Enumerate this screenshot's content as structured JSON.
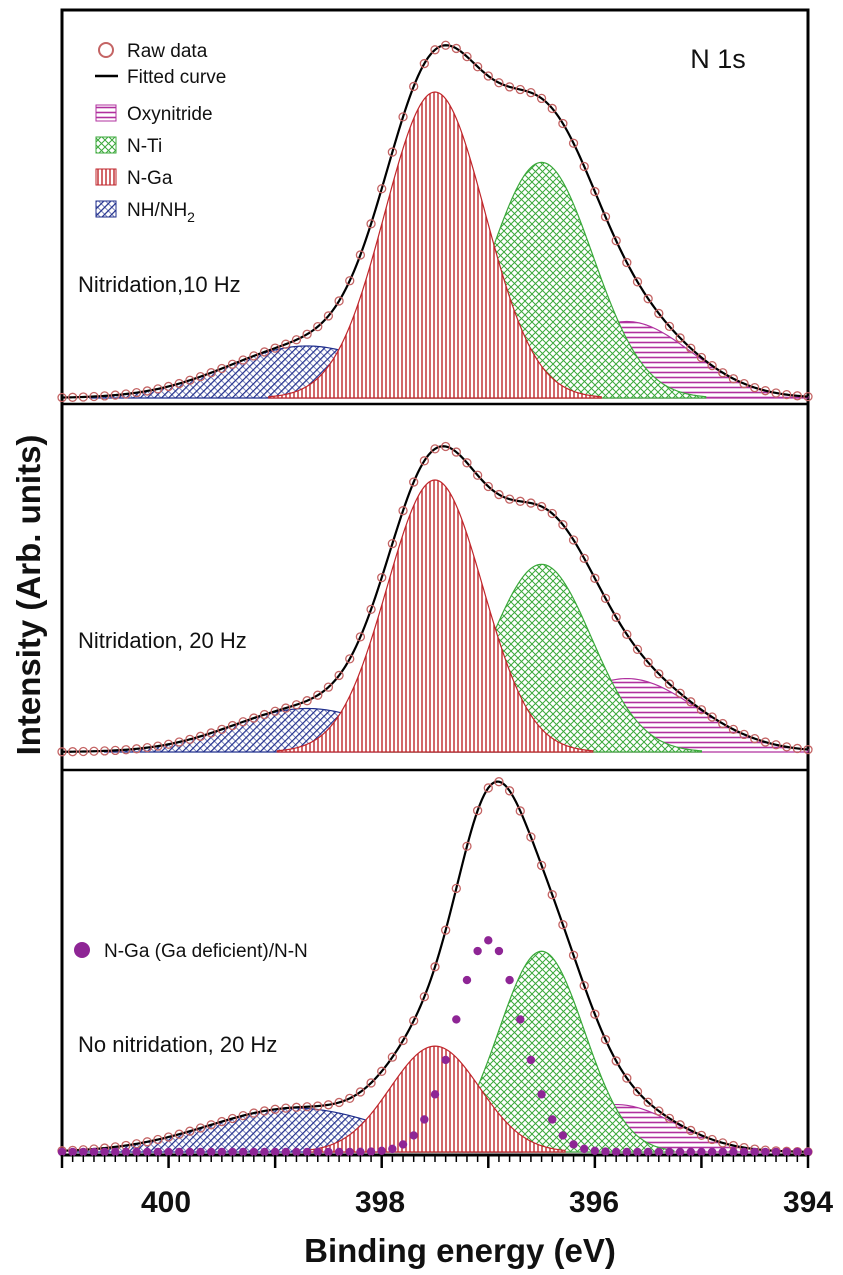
{
  "chart_data": {
    "type": "line",
    "region_label": "N 1s",
    "xlabel": "Binding energy (eV)",
    "ylabel": "Intensity (Arb. units)",
    "xlim": [
      401,
      394
    ],
    "x_ticks": [
      "400",
      "398",
      "396",
      "394"
    ],
    "grid": false,
    "legend_position": "top-left",
    "legend": {
      "raw": "Raw data",
      "fit": "Fitted curve",
      "oxy": "Oxynitride",
      "nti": "N-Ti",
      "nga": "N-Ga",
      "nh_base": "NH/NH",
      "nh_sub": "2",
      "ngad": "N-Ga (Ga deficient)/N-N"
    },
    "colors": {
      "oxy": "#b0309f",
      "nti": "#3aa83a",
      "nga": "#c0262b",
      "nh": "#1f2e8c",
      "raw": "#c46464",
      "ngad": "#8e2595",
      "fit": "#000000"
    },
    "panels": [
      {
        "label": "Nitridation,10 Hz",
        "components": [
          {
            "key": "nh",
            "center": 398.7,
            "amplitude": 0.17,
            "sigma": 0.75
          },
          {
            "key": "nga",
            "center": 397.5,
            "amplitude": 1.0,
            "sigma": 0.47
          },
          {
            "key": "nti",
            "center": 396.5,
            "amplitude": 0.77,
            "sigma": 0.48
          },
          {
            "key": "oxy",
            "center": 395.7,
            "amplitude": 0.25,
            "sigma": 0.6
          }
        ]
      },
      {
        "label": "Nitridation, 20 Hz",
        "components": [
          {
            "key": "nh",
            "center": 398.7,
            "amplitude": 0.16,
            "sigma": 0.7
          },
          {
            "key": "nga",
            "center": 397.5,
            "amplitude": 1.0,
            "sigma": 0.45
          },
          {
            "key": "nti",
            "center": 396.5,
            "amplitude": 0.69,
            "sigma": 0.47
          },
          {
            "key": "oxy",
            "center": 395.7,
            "amplitude": 0.27,
            "sigma": 0.65
          }
        ]
      },
      {
        "label": "No nitridation, 20 Hz",
        "components": [
          {
            "key": "nh",
            "center": 398.8,
            "amplitude": 0.12,
            "sigma": 0.82
          },
          {
            "key": "nga",
            "center": 397.5,
            "amplitude": 0.29,
            "sigma": 0.42
          },
          {
            "key": "nti",
            "center": 396.5,
            "amplitude": 0.55,
            "sigma": 0.4
          },
          {
            "key": "oxy",
            "center": 395.8,
            "amplitude": 0.13,
            "sigma": 0.55
          },
          {
            "key": "ngad",
            "center": 397.0,
            "amplitude": 0.58,
            "sigma": 0.31
          }
        ]
      }
    ]
  }
}
